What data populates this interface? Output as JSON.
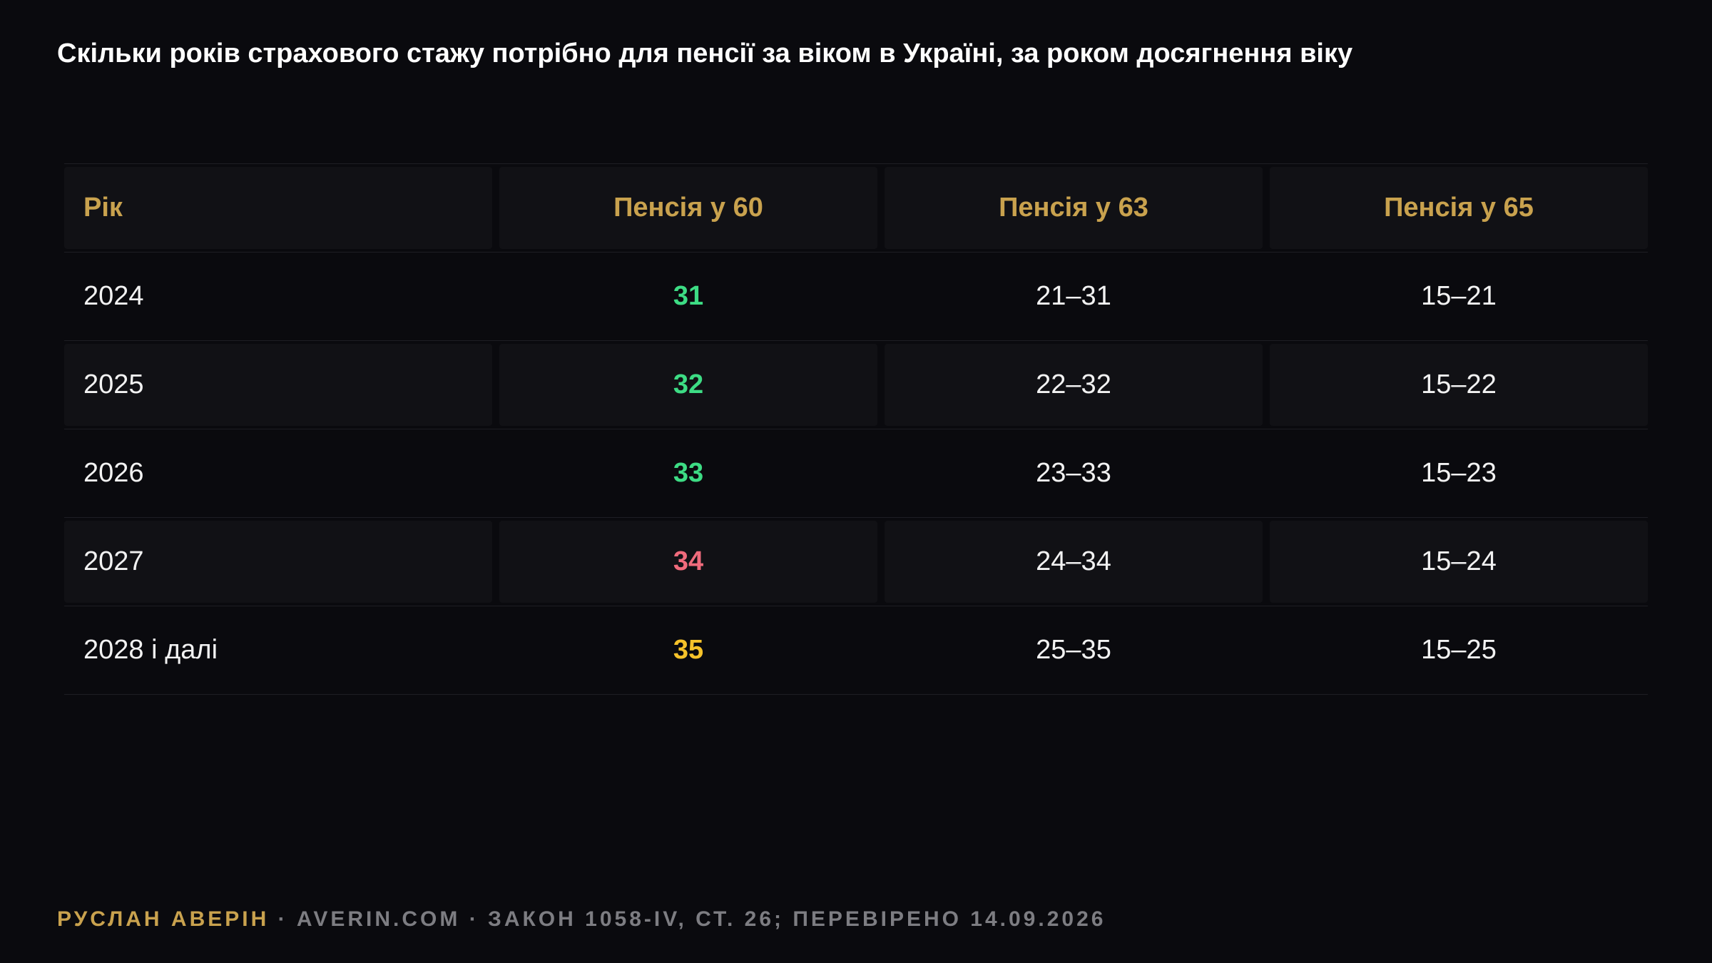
{
  "title": "Скільки років страхового стажу потрібно для пенсії за віком в Україні, за роком досягнення віку",
  "colors": {
    "accent_gold": "#c9a24e",
    "value_green": "#3ddc84",
    "value_red": "#f06b7c",
    "value_yellow": "#f5c22a",
    "background": "#0a0a0e"
  },
  "chart_data": {
    "type": "table",
    "columns": [
      "Рік",
      "Пенсія у 60",
      "Пенсія у 63",
      "Пенсія у 65"
    ],
    "rows": [
      {
        "year": "2024",
        "age60": "31",
        "age60_color": "green",
        "age63": "21–31",
        "age65": "15–21"
      },
      {
        "year": "2025",
        "age60": "32",
        "age60_color": "green",
        "age63": "22–32",
        "age65": "15–22"
      },
      {
        "year": "2026",
        "age60": "33",
        "age60_color": "green",
        "age63": "23–33",
        "age65": "15–23"
      },
      {
        "year": "2027",
        "age60": "34",
        "age60_color": "red",
        "age63": "24–34",
        "age65": "15–24"
      },
      {
        "year": "2028 і далі",
        "age60": "35",
        "age60_color": "yellow",
        "age63": "25–35",
        "age65": "15–25"
      }
    ]
  },
  "footer": {
    "author": "РУСЛАН АВЕРІН",
    "rest": " · AVERIN.COM · ЗАКОН 1058-IV, СТ. 26; ПЕРЕВІРЕНО 14.09.2026"
  }
}
